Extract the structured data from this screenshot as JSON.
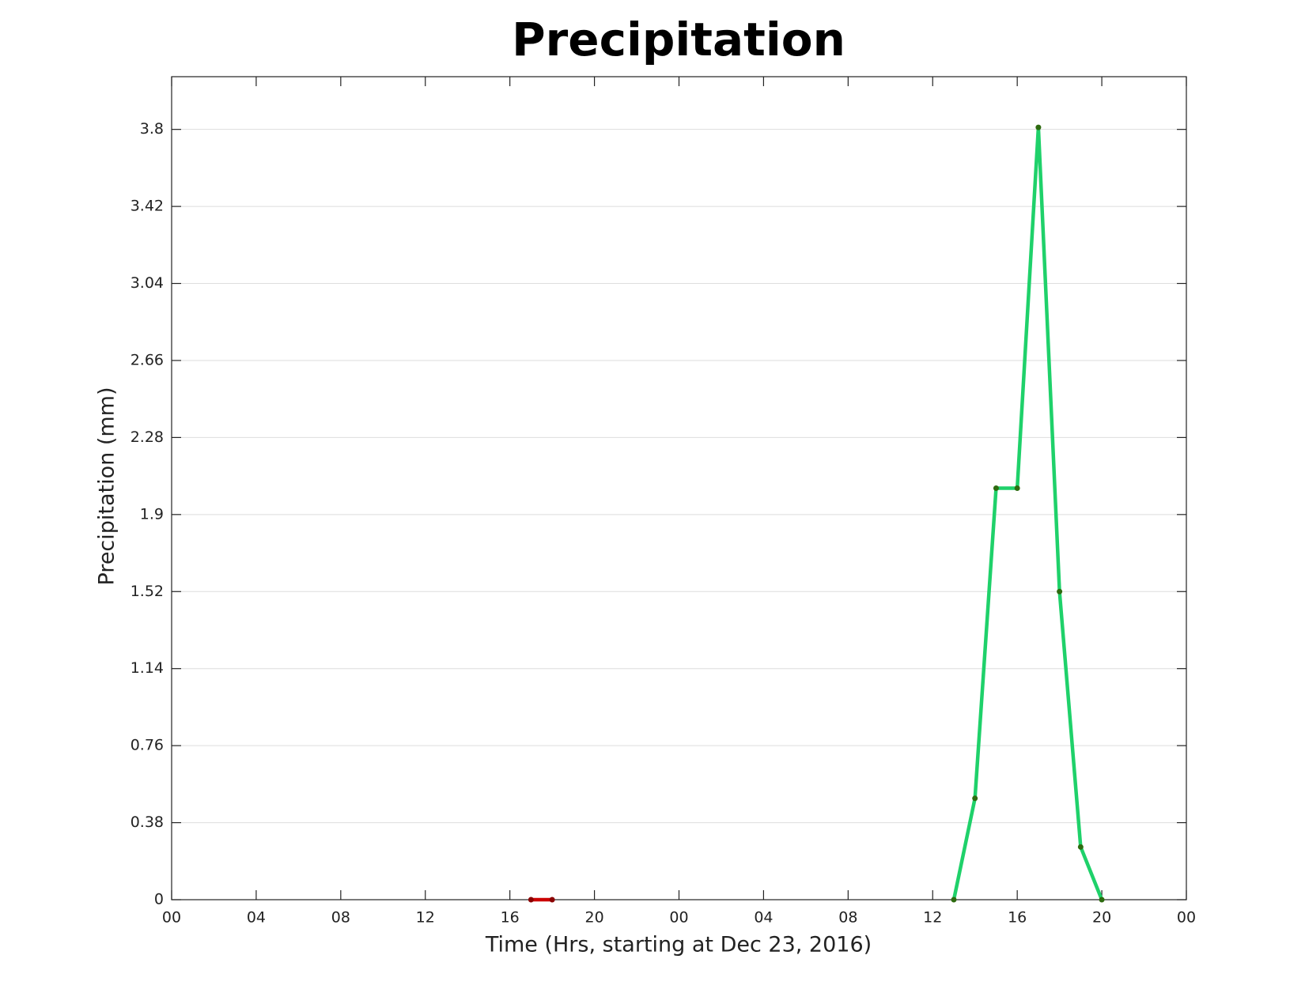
{
  "chart_data": {
    "type": "line",
    "title": "Precipitation",
    "x_label": "Time (Hrs, starting at Dec 23, 2016)",
    "y_label": "Precipitation (mm)",
    "x": [
      17,
      18,
      37,
      38,
      39,
      40,
      41,
      42,
      43,
      44
    ],
    "series": [
      {
        "color": "#cc0000",
        "marker_color": "#8b0000",
        "values": [
          0,
          0,
          null,
          null,
          null,
          null,
          null,
          null,
          null,
          null
        ]
      },
      {
        "color": "#1fd16a",
        "marker_color": "#2e6b10",
        "values": [
          null,
          null,
          0,
          0.5,
          2.03,
          2.03,
          3.81,
          1.52,
          0.26,
          0
        ]
      }
    ],
    "xlim": [
      0,
      48
    ],
    "xticks": [
      {
        "value": 0,
        "label": "00"
      },
      {
        "value": 4,
        "label": "04"
      },
      {
        "value": 8,
        "label": "08"
      },
      {
        "value": 12,
        "label": "12"
      },
      {
        "value": 16,
        "label": "16"
      },
      {
        "value": 20,
        "label": "20"
      },
      {
        "value": 24,
        "label": "00"
      },
      {
        "value": 28,
        "label": "04"
      },
      {
        "value": 32,
        "label": "08"
      },
      {
        "value": 36,
        "label": "12"
      },
      {
        "value": 40,
        "label": "16"
      },
      {
        "value": 44,
        "label": "20"
      },
      {
        "value": 48,
        "label": "00"
      }
    ],
    "ylim": [
      0,
      4.06
    ],
    "yticks": [
      0,
      0.38,
      0.76,
      1.14,
      1.52,
      1.9,
      2.28,
      2.66,
      3.04,
      3.42,
      3.8
    ],
    "grid": true
  }
}
